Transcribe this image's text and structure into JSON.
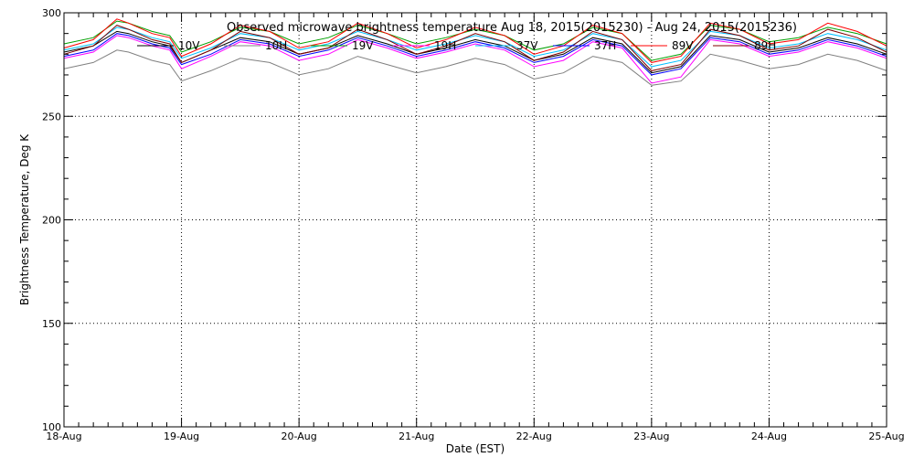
{
  "chart_data": {
    "type": "line",
    "title": "Observed microwave brightness temperature Aug 18, 2015(2015230) - Aug 24, 2015(2015236)",
    "xlabel": "Date (EST)",
    "ylabel": "Brightness Temperature, Deg K",
    "ylim": [
      100,
      300
    ],
    "yticks": [
      100,
      150,
      200,
      250,
      300
    ],
    "xlim": [
      0,
      7
    ],
    "xticks": [
      {
        "x": 0,
        "label": "18-Aug"
      },
      {
        "x": 1,
        "label": "19-Aug"
      },
      {
        "x": 2,
        "label": "20-Aug"
      },
      {
        "x": 3,
        "label": "21-Aug"
      },
      {
        "x": 4,
        "label": "22-Aug"
      },
      {
        "x": 5,
        "label": "23-Aug"
      },
      {
        "x": 6,
        "label": "24-Aug"
      },
      {
        "x": 7,
        "label": "25-Aug"
      }
    ],
    "grid": true,
    "legend_position": "top-center",
    "x": [
      0,
      0.25,
      0.45,
      0.55,
      0.75,
      0.9,
      1.0,
      1.25,
      1.5,
      1.75,
      2.0,
      2.25,
      2.5,
      2.75,
      3.0,
      3.25,
      3.5,
      3.75,
      4.0,
      4.25,
      4.5,
      4.75,
      5.0,
      5.25,
      5.5,
      5.75,
      6.0,
      6.25,
      6.5,
      6.75,
      7.0
    ],
    "series": [
      {
        "name": "10V",
        "color": "#000000",
        "values": [
          281,
          284,
          291,
          290,
          286,
          284,
          276,
          282,
          288,
          286,
          280,
          283,
          289,
          285,
          280,
          283,
          287,
          284,
          277,
          280,
          288,
          285,
          271,
          274,
          289,
          287,
          281,
          283,
          288,
          285,
          280
        ]
      },
      {
        "name": "10H",
        "color": "#808080",
        "values": [
          273,
          276,
          282,
          281,
          277,
          275,
          267,
          272,
          278,
          276,
          270,
          273,
          279,
          275,
          271,
          274,
          278,
          275,
          268,
          271,
          279,
          276,
          265,
          267,
          280,
          277,
          273,
          275,
          280,
          277,
          272
        ]
      },
      {
        "name": "19V",
        "color": "#00a000",
        "values": [
          285,
          288,
          296,
          295,
          291,
          289,
          281,
          286,
          293,
          291,
          285,
          288,
          294,
          290,
          285,
          288,
          292,
          289,
          282,
          285,
          293,
          290,
          277,
          280,
          294,
          292,
          286,
          288,
          293,
          290,
          285
        ]
      },
      {
        "name": "19H",
        "color": "#ff00ff",
        "values": [
          278,
          281,
          289,
          288,
          284,
          282,
          273,
          279,
          286,
          284,
          277,
          280,
          287,
          283,
          278,
          281,
          285,
          282,
          274,
          277,
          286,
          283,
          266,
          269,
          287,
          285,
          279,
          281,
          286,
          283,
          278
        ]
      },
      {
        "name": "37V",
        "color": "#00c0ff",
        "values": [
          282,
          285,
          293,
          292,
          288,
          286,
          278,
          283,
          290,
          288,
          282,
          285,
          291,
          287,
          282,
          285,
          289,
          286,
          279,
          282,
          290,
          287,
          274,
          277,
          291,
          289,
          283,
          285,
          290,
          287,
          282
        ]
      },
      {
        "name": "37H",
        "color": "#0000ff",
        "values": [
          279,
          282,
          290,
          289,
          285,
          283,
          275,
          280,
          287,
          285,
          279,
          282,
          288,
          284,
          279,
          282,
          286,
          283,
          276,
          279,
          287,
          284,
          270,
          273,
          288,
          286,
          280,
          282,
          287,
          284,
          279
        ]
      },
      {
        "name": "89V",
        "color": "#ff0000",
        "values": [
          283,
          287,
          297,
          295,
          290,
          288,
          279,
          285,
          294,
          291,
          283,
          286,
          295,
          290,
          283,
          287,
          293,
          289,
          280,
          284,
          294,
          290,
          276,
          279,
          295,
          292,
          285,
          287,
          295,
          291,
          284
        ]
      },
      {
        "name": "89H",
        "color": "#800000",
        "values": [
          280,
          284,
          294,
          292,
          287,
          285,
          276,
          282,
          291,
          288,
          280,
          283,
          292,
          287,
          280,
          284,
          290,
          286,
          277,
          281,
          291,
          287,
          272,
          275,
          292,
          289,
          282,
          284,
          292,
          288,
          281
        ]
      }
    ]
  }
}
